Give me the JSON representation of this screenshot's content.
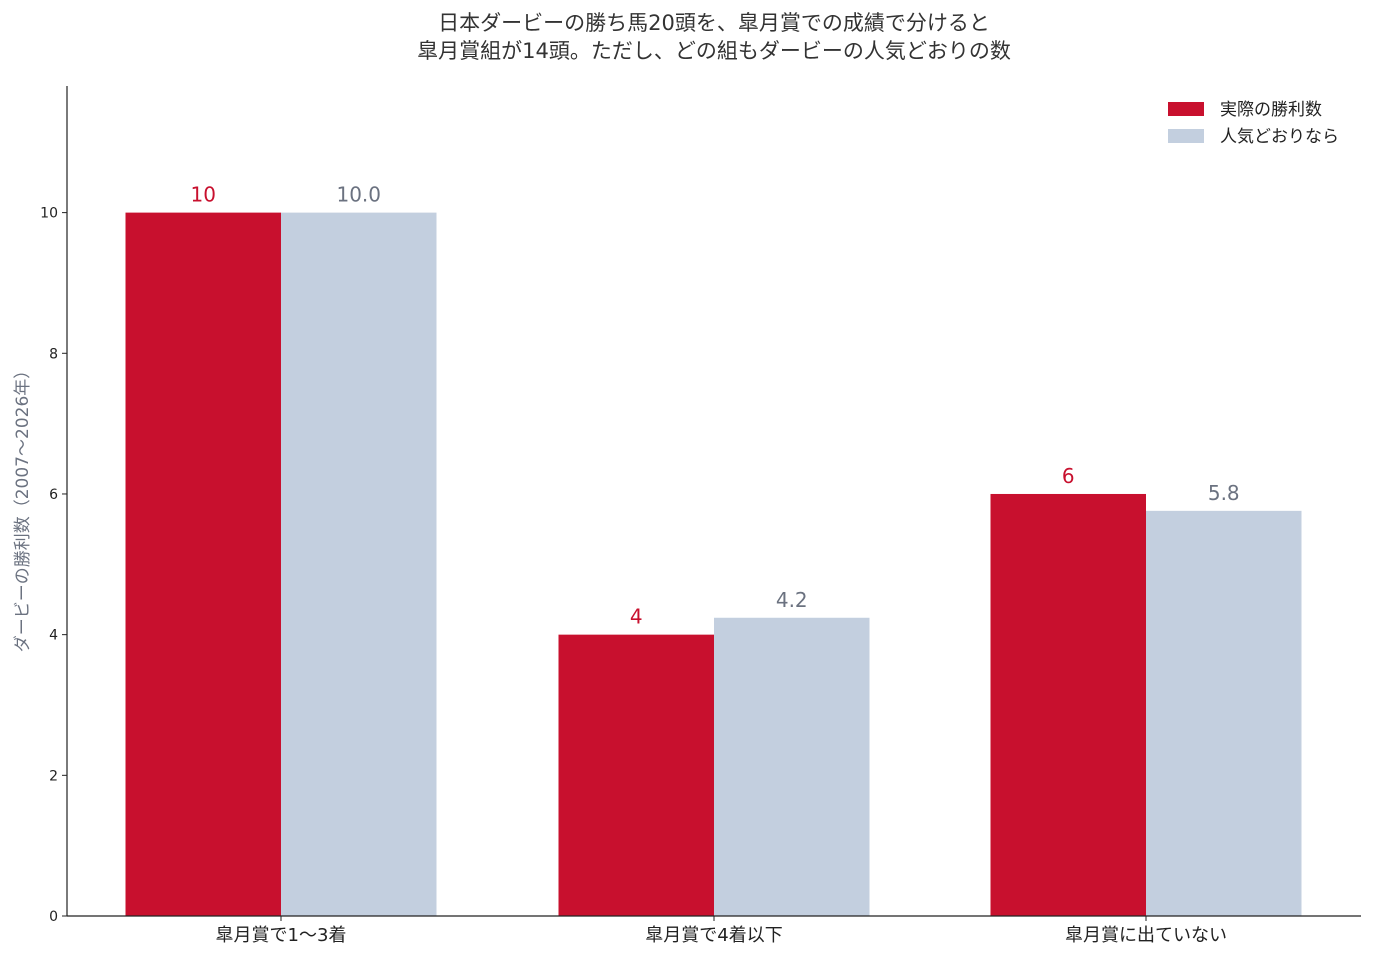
{
  "chart_data": {
    "type": "bar",
    "title": [
      "日本ダービーの勝ち馬20頭を、皐月賞での成績で分けると",
      "皐月賞組が14頭。ただし、どの組もダービーの人気どおりの数"
    ],
    "ylabel": "ダービーの勝利数（2007〜2026年）",
    "xlabel": "",
    "categories": [
      "皐月賞で1〜3着",
      "皐月賞で4着以下",
      "皐月賞に出ていない"
    ],
    "series": [
      {
        "name": "実際の勝利数",
        "values": [
          10,
          4,
          6
        ],
        "labels": [
          "10",
          "4",
          "6"
        ],
        "color": "#c8102e",
        "label_color": "#c8102e"
      },
      {
        "name": "人気どおりなら",
        "values": [
          10.0,
          4.24,
          5.76
        ],
        "labels": [
          "10.0",
          "4.2",
          "5.8"
        ],
        "color": "#c3cfdf",
        "label_color": "#6b7280"
      }
    ],
    "yticks": [
      0,
      2,
      4,
      6,
      8,
      10
    ],
    "ylim": [
      0,
      11.8
    ],
    "legend": "top-right",
    "grid": false
  }
}
